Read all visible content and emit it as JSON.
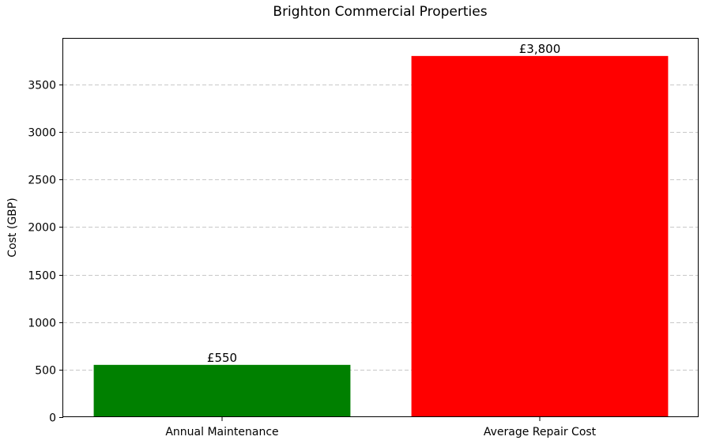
{
  "chart_data": {
    "type": "bar",
    "title": "Brighton Commercial Properties",
    "xlabel": "",
    "ylabel": "Cost (GBP)",
    "categories": [
      "Annual Maintenance",
      "Average Repair Cost"
    ],
    "values": [
      550,
      3800
    ],
    "data_labels": [
      "£550",
      "£3,800"
    ],
    "colors": [
      "#008000",
      "#ff0000"
    ],
    "ylim": [
      0,
      3990
    ],
    "yticks": [
      0,
      500,
      1000,
      1500,
      2000,
      2500,
      3000,
      3500
    ],
    "grid": "y-dashed",
    "legend": "none"
  }
}
